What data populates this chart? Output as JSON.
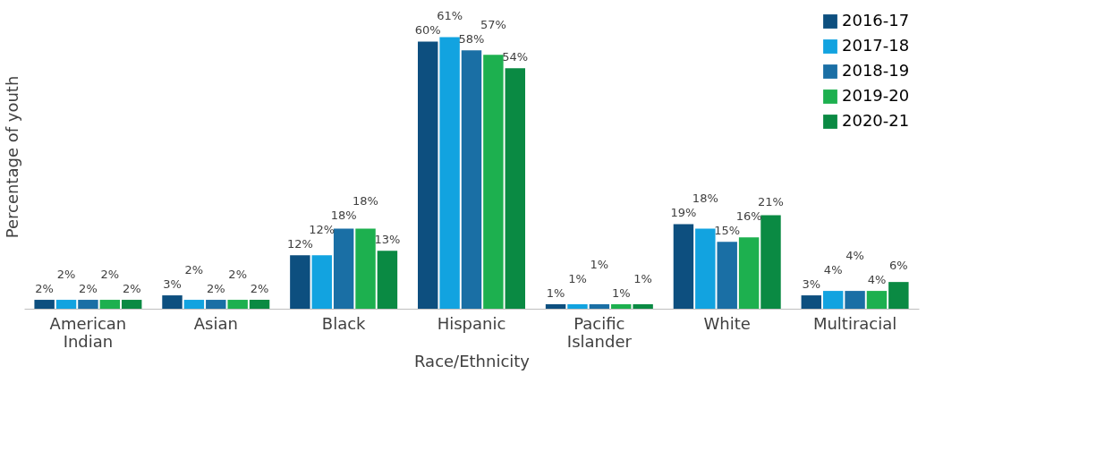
{
  "chart_data": {
    "type": "bar",
    "xlabel": "Race/Ethnicity",
    "ylabel": "Percentage of youth",
    "categories": [
      "American Indian",
      "Asian",
      "Black",
      "Hispanic",
      "Pacific Islander",
      "White",
      "Multiracial"
    ],
    "series": [
      {
        "name": "2016-17",
        "color": "#0d4f7f",
        "values": [
          2,
          3,
          12,
          60,
          1,
          19,
          3
        ],
        "value_labels": [
          "2%",
          "3%",
          "12%",
          "60%",
          "1%",
          "19%",
          "3%"
        ]
      },
      {
        "name": "2017-18",
        "color": "#12a3e0",
        "values": [
          2,
          2,
          12,
          61,
          1,
          18,
          4
        ],
        "value_labels": [
          "2%",
          "2%",
          "12%",
          "61%",
          "1%",
          "18%",
          "4%"
        ]
      },
      {
        "name": "2018-19",
        "color": "#1a6fa5",
        "values": [
          2,
          2,
          18,
          58,
          1,
          15,
          4
        ],
        "value_labels": [
          "2%",
          "2%",
          "18%",
          "58%",
          "1%",
          "15%",
          "4%"
        ]
      },
      {
        "name": "2019-20",
        "color": "#1db04f",
        "values": [
          2,
          2,
          18,
          57,
          1,
          16,
          4
        ],
        "value_labels": [
          "2%",
          "2%",
          "18%",
          "57%",
          "1%",
          "16%",
          "4%"
        ]
      },
      {
        "name": "2020-21",
        "color": "#0a8a43",
        "values": [
          2,
          2,
          13,
          54,
          1,
          21,
          6
        ],
        "value_labels": [
          "2%",
          "2%",
          "13%",
          "54%",
          "1%",
          "21%",
          "6%"
        ]
      }
    ],
    "legend": "top right",
    "grid": false
  }
}
